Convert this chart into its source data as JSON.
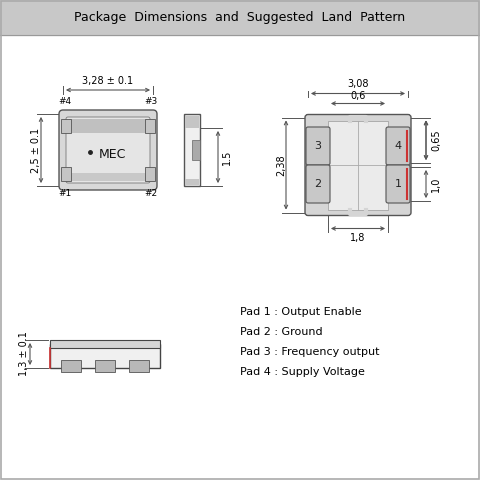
{
  "title": "Package  Dimensions  and  Suggested  Land  Pattern",
  "title_bg": "#c8c8c8",
  "bg_color": "#f5f5f5",
  "body_bg": "#ffffff",
  "pad_labels": [
    "Pad 1 : Output Enable",
    "Pad 2 : Ground",
    "Pad 3 : Frequency output",
    "Pad 4 : Supply Voltage"
  ],
  "dim_top": "3,28 ± 0.1",
  "dim_left": "2,5 ± 0.1",
  "dim_height_side": "1.5",
  "dim_3_08": "3,08",
  "dim_0_6": "0,6",
  "dim_2_38": "2,38",
  "dim_0_65": "0,65",
  "dim_1_0": "1,0",
  "dim_1_8": "1,8",
  "dim_bottom_h": "1,3 ± 0.1",
  "pad_nums_top": [
    "#4",
    "#3"
  ],
  "pad_nums_bot": [
    "#1",
    "#2"
  ],
  "mec_label": "MEC",
  "text_color": "#000000",
  "dim_color": "#555555"
}
